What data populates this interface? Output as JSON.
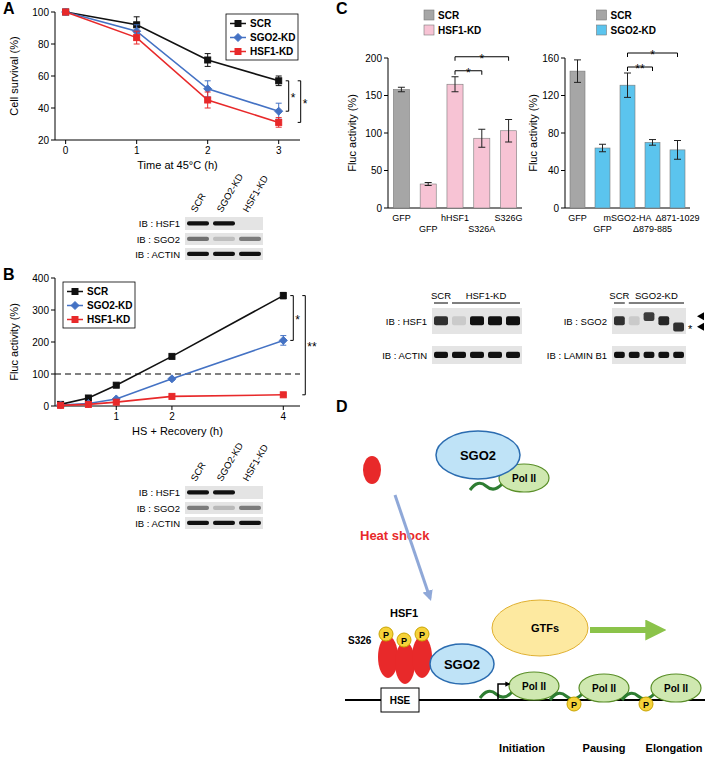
{
  "panels": [
    "A",
    "B",
    "C",
    "D"
  ],
  "chart_data": [
    {
      "type": "line",
      "y_label": "Cell survival (%)",
      "x_label": "Time at 45°C (h)",
      "x": [
        0,
        1,
        2,
        3
      ],
      "xlim": [
        -0.15,
        3.3
      ],
      "xticks": [
        0,
        1,
        2,
        3
      ],
      "ylim": [
        20,
        100
      ],
      "yticks": [
        20,
        40,
        60,
        80,
        100
      ],
      "legend": "top-right",
      "series": [
        {
          "name": "SCR",
          "color": "#111111",
          "marker": "square",
          "values": [
            100,
            92,
            70,
            57
          ],
          "errors": [
            0,
            5,
            4,
            3
          ]
        },
        {
          "name": "SGO2-KD",
          "color": "#4472c4",
          "marker": "diamond",
          "values": [
            100,
            88,
            52,
            38
          ],
          "errors": [
            0,
            4,
            5,
            5
          ]
        },
        {
          "name": "HSF1-KD",
          "color": "#e8292a",
          "marker": "square",
          "values": [
            100,
            84,
            45,
            31
          ],
          "errors": [
            0,
            4,
            5,
            3
          ]
        }
      ],
      "annotations": [
        {
          "text": "*",
          "between": [
            "SCR",
            "SGO2-KD"
          ]
        },
        {
          "text": "*",
          "between": [
            "SCR",
            "HSF1-KD"
          ]
        }
      ]
    },
    {
      "type": "line",
      "y_label": "Fluc activity (%)",
      "x_label": "HS + Recovery (h)",
      "x": [
        0,
        0.5,
        1,
        2,
        4
      ],
      "xlim": [
        -0.1,
        4.3
      ],
      "xticks": [
        1,
        2,
        4
      ],
      "ylim": [
        0,
        400
      ],
      "yticks": [
        0,
        100,
        200,
        300,
        400
      ],
      "legend": "top-left",
      "reference_value": 100,
      "series": [
        {
          "name": "SCR",
          "color": "#111111",
          "marker": "square",
          "values": [
            5,
            25,
            65,
            155,
            345
          ],
          "errors": [
            1,
            2,
            3,
            5,
            10
          ]
        },
        {
          "name": "SGO2-KD",
          "color": "#4472c4",
          "marker": "diamond",
          "values": [
            3,
            8,
            22,
            85,
            205
          ],
          "errors": [
            1,
            1,
            2,
            4,
            15
          ]
        },
        {
          "name": "HSF1-KD",
          "color": "#e8292a",
          "marker": "square",
          "values": [
            2,
            5,
            12,
            30,
            35
          ],
          "errors": [
            1,
            1,
            1,
            2,
            3
          ]
        }
      ],
      "annotations": [
        {
          "text": "*",
          "between": [
            "SCR",
            "SGO2-KD"
          ]
        },
        {
          "text": "**",
          "between": [
            "SCR",
            "HSF1-KD"
          ]
        }
      ]
    },
    {
      "type": "bar",
      "y_label": "Fluc activity (%)",
      "categories": [
        "GFP",
        "GFP",
        "hHSF1",
        "S326A",
        "S326G"
      ],
      "ylim": [
        0,
        200
      ],
      "yticks": [
        0,
        50,
        100,
        150,
        200
      ],
      "legend": "top",
      "series": [
        {
          "name": "SCR",
          "color": "#a6a6a6",
          "values": [
            158,
            null,
            null,
            null,
            null
          ],
          "errors": [
            3,
            null,
            null,
            null,
            null
          ]
        },
        {
          "name": "HSF1-KD",
          "color": "#f7c3d4",
          "values": [
            null,
            32,
            165,
            93,
            103
          ],
          "errors": [
            null,
            2,
            10,
            12,
            15
          ]
        }
      ],
      "annotations": [
        {
          "text": "*",
          "between": [
            "hHSF1",
            "S326A"
          ]
        },
        {
          "text": "*",
          "between": [
            "hHSF1",
            "S326G"
          ]
        }
      ]
    },
    {
      "type": "bar",
      "y_label": "Fluc activity (%)",
      "categories": [
        "GFP",
        "GFP",
        "mSGO2-HA",
        "Δ879-885",
        "Δ871-1029"
      ],
      "ylim": [
        0,
        160
      ],
      "yticks": [
        0,
        40,
        80,
        120,
        160
      ],
      "legend": "top",
      "series": [
        {
          "name": "SCR",
          "color": "#a6a6a6",
          "values": [
            146,
            null,
            null,
            null,
            null
          ],
          "errors": [
            12,
            null,
            null,
            null,
            null
          ]
        },
        {
          "name": "SGO2-KD",
          "color": "#5bc4ee",
          "values": [
            null,
            64,
            131,
            70,
            62
          ],
          "errors": [
            null,
            4,
            13,
            3,
            10
          ]
        }
      ],
      "annotations": [
        {
          "text": "**",
          "between": [
            "mSGO2-HA",
            "Δ879-885"
          ]
        },
        {
          "text": "*",
          "between": [
            "mSGO2-HA",
            "Δ871-1029"
          ]
        }
      ]
    }
  ],
  "blots": [
    {
      "lanes": [
        "SCR",
        "SGO2-KD",
        "HSF1-KD"
      ],
      "rows": [
        "IB : HSF1",
        "IB : SGO2",
        "IB : ACTIN"
      ]
    },
    {
      "lanes": [
        "SCR",
        "SGO2-KD",
        "HSF1-KD"
      ],
      "rows": [
        "IB : HSF1",
        "IB : SGO2",
        "IB : ACTIN"
      ]
    },
    {
      "groups": [
        "SCR",
        "HSF1-KD"
      ],
      "rows": [
        "IB : HSF1",
        "IB : ACTIN"
      ]
    },
    {
      "groups": [
        "SCR",
        "SGO2-KD"
      ],
      "rows": [
        "IB : SGO2",
        "IB : LAMIN B1"
      ],
      "band_marks": [
        "*"
      ]
    }
  ],
  "diagram": {
    "stimulus": "Heat shock",
    "factor": "HSF1",
    "site": "S326",
    "phospho": "P",
    "element": "HSE",
    "cofactor": "SGO2",
    "polymerase": "Pol II",
    "gtfs": "GTFs",
    "stages": [
      "Initiation",
      "Pausing",
      "Elongation"
    ]
  }
}
